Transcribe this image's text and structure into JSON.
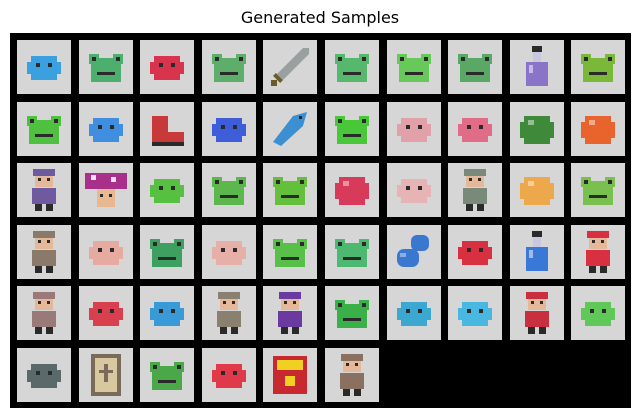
{
  "figure": {
    "title": "Generated Samples"
  },
  "grid": {
    "columns": 10,
    "rows": [
      [
        {
          "label": "blue creature",
          "kind": "blob",
          "color": "#3aa0e0"
        },
        {
          "label": "green frog",
          "kind": "frog",
          "color": "#4caf6e"
        },
        {
          "label": "red creature",
          "kind": "blob",
          "color": "#d8344e"
        },
        {
          "label": "green frog",
          "kind": "frog",
          "color": "#5cae6a"
        },
        {
          "label": "sword",
          "kind": "sword",
          "color": "#6b5a2a"
        },
        {
          "label": "green frog",
          "kind": "frog",
          "color": "#56b86c"
        },
        {
          "label": "green frog",
          "kind": "frog",
          "color": "#66c95a"
        },
        {
          "label": "green frog",
          "kind": "frog",
          "color": "#5aa866"
        },
        {
          "label": "potion bottle",
          "kind": "bottle",
          "color": "#8a74c8"
        },
        {
          "label": "green frog",
          "kind": "frog",
          "color": "#7ab83a"
        }
      ],
      [
        {
          "label": "green frog",
          "kind": "frog",
          "color": "#50c040"
        },
        {
          "label": "blue creature",
          "kind": "blob",
          "color": "#3f8ee0"
        },
        {
          "label": "red boot",
          "kind": "boot",
          "color": "#c83a3a"
        },
        {
          "label": "blue creature",
          "kind": "blob",
          "color": "#3d5ed8"
        },
        {
          "label": "blue fish",
          "kind": "fish",
          "color": "#3c8fd0"
        },
        {
          "label": "green frog",
          "kind": "frog",
          "color": "#48c838"
        },
        {
          "label": "pink blob",
          "kind": "blob",
          "color": "#e2a0a8"
        },
        {
          "label": "pink sprite",
          "kind": "blob",
          "color": "#e06c88"
        },
        {
          "label": "green bush",
          "kind": "round",
          "color": "#3e8a3a"
        },
        {
          "label": "orange fruit",
          "kind": "round",
          "color": "#e8642c"
        }
      ],
      [
        {
          "label": "purple character",
          "kind": "person",
          "color": "#6f5aa0"
        },
        {
          "label": "mushroom",
          "kind": "mushroom",
          "color": "#a8308a"
        },
        {
          "label": "green blob",
          "kind": "blob",
          "color": "#58c040"
        },
        {
          "label": "green frog",
          "kind": "frog",
          "color": "#5cb84c"
        },
        {
          "label": "green frog",
          "kind": "frog",
          "color": "#64c03a"
        },
        {
          "label": "red slime",
          "kind": "round",
          "color": "#d83a5a"
        },
        {
          "label": "pink blob",
          "kind": "blob",
          "color": "#e6b4b4"
        },
        {
          "label": "grey character",
          "kind": "person",
          "color": "#7a8a7a"
        },
        {
          "label": "orange blob",
          "kind": "round",
          "color": "#eca84a"
        },
        {
          "label": "green frog",
          "kind": "frog",
          "color": "#7ac04e"
        }
      ],
      [
        {
          "label": "white hair character",
          "kind": "person",
          "color": "#8a7a6a"
        },
        {
          "label": "pink blob",
          "kind": "blob",
          "color": "#e6aaa0"
        },
        {
          "label": "green frog",
          "kind": "frog",
          "color": "#3ea060"
        },
        {
          "label": "pink blob",
          "kind": "blob",
          "color": "#e6b0a8"
        },
        {
          "label": "green frog",
          "kind": "frog",
          "color": "#58c048"
        },
        {
          "label": "green frog",
          "kind": "frog",
          "color": "#4cb870"
        },
        {
          "label": "blue capsules",
          "kind": "capsule",
          "color": "#3a78d0"
        },
        {
          "label": "red monster",
          "kind": "blob",
          "color": "#d83040"
        },
        {
          "label": "blue bottle",
          "kind": "bottle",
          "color": "#3a78d8"
        },
        {
          "label": "red hair character",
          "kind": "person",
          "color": "#d83040"
        }
      ],
      [
        {
          "label": "character",
          "kind": "person",
          "color": "#9a7a78"
        },
        {
          "label": "red creature",
          "kind": "blob",
          "color": "#d84050"
        },
        {
          "label": "blue ghost",
          "kind": "blob",
          "color": "#3a9ad8"
        },
        {
          "label": "character",
          "kind": "person",
          "color": "#8a8070"
        },
        {
          "label": "purple mage",
          "kind": "person",
          "color": "#6a3aa0"
        },
        {
          "label": "green creature",
          "kind": "frog",
          "color": "#3ab048"
        },
        {
          "label": "blue creature",
          "kind": "blob",
          "color": "#3aa8d0"
        },
        {
          "label": "blue creature",
          "kind": "blob",
          "color": "#48b8e0"
        },
        {
          "label": "red hair character",
          "kind": "person",
          "color": "#c83040"
        },
        {
          "label": "green blob",
          "kind": "blob",
          "color": "#60c858"
        }
      ],
      [
        {
          "label": "grey gargoyle",
          "kind": "blob",
          "color": "#5a6a6a"
        },
        {
          "label": "book",
          "kind": "book",
          "color": "#7a6a5a"
        },
        {
          "label": "green frog",
          "kind": "frog",
          "color": "#4aa848"
        },
        {
          "label": "red creature",
          "kind": "blob",
          "color": "#e03a4a"
        },
        {
          "label": "red box",
          "kind": "box",
          "color": "#c82830"
        },
        {
          "label": "character",
          "kind": "person",
          "color": "#8a7060"
        }
      ]
    ]
  }
}
